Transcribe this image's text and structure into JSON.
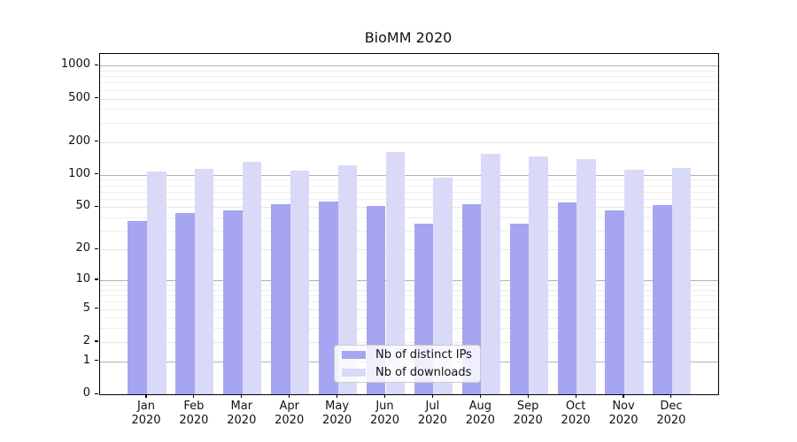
{
  "chart_data": {
    "type": "bar",
    "title": "BioMM 2020",
    "categories": [
      "Jan 2020",
      "Feb 2020",
      "Mar 2020",
      "Apr 2020",
      "May 2020",
      "Jun 2020",
      "Jul 2020",
      "Aug 2020",
      "Sep 2020",
      "Oct 2020",
      "Nov 2020",
      "Dec 2020"
    ],
    "series": [
      {
        "name": "Nb of distinct IPs",
        "color": "#a5a5f1",
        "values": [
          37,
          44,
          47,
          53,
          57,
          51,
          35,
          53,
          35,
          55,
          47,
          52
        ]
      },
      {
        "name": "Nb of downloads",
        "color": "#d9d9f8",
        "values": [
          108,
          114,
          131,
          110,
          123,
          161,
          94,
          155,
          146,
          139,
          112,
          115
        ]
      }
    ],
    "xlabel": "",
    "ylabel": "",
    "yticks": [
      0,
      1,
      2,
      5,
      10,
      20,
      50,
      100,
      200,
      500,
      1000
    ],
    "decade_ticks": [
      1,
      10,
      100,
      1000
    ],
    "minor_gridlines": [
      3,
      4,
      6,
      7,
      8,
      9,
      30,
      40,
      60,
      70,
      80,
      90,
      300,
      400,
      600,
      700,
      800,
      900
    ],
    "yscale": "symlog",
    "ylim": [
      0,
      1280
    ],
    "grid": "horizontal",
    "legend_position": "inside-bottom-center",
    "background": "#ffffff"
  }
}
